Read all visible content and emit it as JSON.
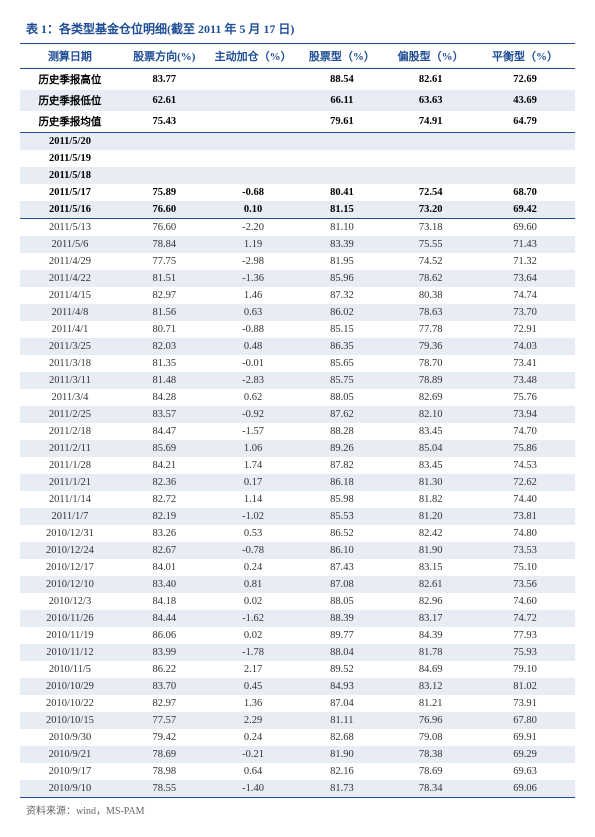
{
  "title": "表 1：各类型基金仓位明细(截至 2011 年 5 月 17 日)",
  "footer": "资料来源：wind，MS-PAM",
  "columns": [
    "测算日期",
    "股票方向(%)",
    "主动加仓（%）",
    "股票型（%）",
    "偏股型（%）",
    "平衡型（%）"
  ],
  "summary_rows": [
    {
      "label": "历史季报高位",
      "v": [
        "83.77",
        "",
        "88.54",
        "82.61",
        "72.69"
      ],
      "bold": true
    },
    {
      "label": "历史季报低位",
      "v": [
        "62.61",
        "",
        "66.11",
        "63.63",
        "43.69"
      ],
      "bold": true,
      "gray": true
    },
    {
      "label": "历史季报均值",
      "v": [
        "75.43",
        "",
        "79.61",
        "74.91",
        "64.79"
      ],
      "bold": true,
      "sep": true
    },
    {
      "label": "2011/5/20",
      "v": [
        "",
        "",
        "",
        "",
        ""
      ],
      "bold": true,
      "gray": true
    },
    {
      "label": "2011/5/19",
      "v": [
        "",
        "",
        "",
        "",
        ""
      ],
      "bold": true
    },
    {
      "label": "2011/5/18",
      "v": [
        "",
        "",
        "",
        "",
        ""
      ],
      "bold": true,
      "gray": true
    },
    {
      "label": "2011/5/17",
      "v": [
        "75.89",
        "-0.68",
        "80.41",
        "72.54",
        "68.70"
      ],
      "bold": true
    },
    {
      "label": "2011/5/16",
      "v": [
        "76.60",
        "0.10",
        "81.15",
        "73.20",
        "69.42"
      ],
      "bold": true,
      "gray": true,
      "sep": true
    }
  ],
  "data_rows": [
    {
      "d": "2011/5/13",
      "v": [
        "76.60",
        "-2.20",
        "81.10",
        "73.18",
        "69.60"
      ]
    },
    {
      "d": "2011/5/6",
      "v": [
        "78.84",
        "1.19",
        "83.39",
        "75.55",
        "71.43"
      ]
    },
    {
      "d": "2011/4/29",
      "v": [
        "77.75",
        "-2.98",
        "81.95",
        "74.52",
        "71.32"
      ]
    },
    {
      "d": "2011/4/22",
      "v": [
        "81.51",
        "-1.36",
        "85.96",
        "78.62",
        "73.64"
      ]
    },
    {
      "d": "2011/4/15",
      "v": [
        "82.97",
        "1.46",
        "87.32",
        "80.38",
        "74.74"
      ]
    },
    {
      "d": "2011/4/8",
      "v": [
        "81.56",
        "0.63",
        "86.02",
        "78.63",
        "73.70"
      ]
    },
    {
      "d": "2011/4/1",
      "v": [
        "80.71",
        "-0.88",
        "85.15",
        "77.78",
        "72.91"
      ]
    },
    {
      "d": "2011/3/25",
      "v": [
        "82.03",
        "0.48",
        "86.35",
        "79.36",
        "74.03"
      ]
    },
    {
      "d": "2011/3/18",
      "v": [
        "81.35",
        "-0.01",
        "85.65",
        "78.70",
        "73.41"
      ]
    },
    {
      "d": "2011/3/11",
      "v": [
        "81.48",
        "-2.83",
        "85.75",
        "78.89",
        "73.48"
      ]
    },
    {
      "d": "2011/3/4",
      "v": [
        "84.28",
        "0.62",
        "88.05",
        "82.69",
        "75.76"
      ]
    },
    {
      "d": "2011/2/25",
      "v": [
        "83.57",
        "-0.92",
        "87.62",
        "82.10",
        "73.94"
      ]
    },
    {
      "d": "2011/2/18",
      "v": [
        "84.47",
        "-1.57",
        "88.28",
        "83.45",
        "74.70"
      ]
    },
    {
      "d": "2011/2/11",
      "v": [
        "85.69",
        "1.06",
        "89.26",
        "85.04",
        "75.86"
      ]
    },
    {
      "d": "2011/1/28",
      "v": [
        "84.21",
        "1.74",
        "87.82",
        "83.45",
        "74.53"
      ]
    },
    {
      "d": "2011/1/21",
      "v": [
        "82.36",
        "0.17",
        "86.18",
        "81.30",
        "72.62"
      ]
    },
    {
      "d": "2011/1/14",
      "v": [
        "82.72",
        "1.14",
        "85.98",
        "81.82",
        "74.40"
      ]
    },
    {
      "d": "2011/1/7",
      "v": [
        "82.19",
        "-1.02",
        "85.53",
        "81.20",
        "73.81"
      ]
    },
    {
      "d": "2010/12/31",
      "v": [
        "83.26",
        "0.53",
        "86.52",
        "82.42",
        "74.80"
      ]
    },
    {
      "d": "2010/12/24",
      "v": [
        "82.67",
        "-0.78",
        "86.10",
        "81.90",
        "73.53"
      ]
    },
    {
      "d": "2010/12/17",
      "v": [
        "84.01",
        "0.24",
        "87.43",
        "83.15",
        "75.10"
      ]
    },
    {
      "d": "2010/12/10",
      "v": [
        "83.40",
        "0.81",
        "87.08",
        "82.61",
        "73.56"
      ]
    },
    {
      "d": "2010/12/3",
      "v": [
        "84.18",
        "0.02",
        "88.05",
        "82.96",
        "74.60"
      ]
    },
    {
      "d": "2010/11/26",
      "v": [
        "84.44",
        "-1.62",
        "88.39",
        "83.17",
        "74.72"
      ]
    },
    {
      "d": "2010/11/19",
      "v": [
        "86.06",
        "0.02",
        "89.77",
        "84.39",
        "77.93"
      ]
    },
    {
      "d": "2010/11/12",
      "v": [
        "83.99",
        "-1.78",
        "88.04",
        "81.78",
        "75.93"
      ]
    },
    {
      "d": "2010/11/5",
      "v": [
        "86.22",
        "2.17",
        "89.52",
        "84.69",
        "79.10"
      ]
    },
    {
      "d": "2010/10/29",
      "v": [
        "83.70",
        "0.45",
        "84.93",
        "83.12",
        "81.02"
      ]
    },
    {
      "d": "2010/10/22",
      "v": [
        "82.97",
        "1.36",
        "87.04",
        "81.21",
        "73.91"
      ]
    },
    {
      "d": "2010/10/15",
      "v": [
        "77.57",
        "2.29",
        "81.11",
        "76.96",
        "67.80"
      ]
    },
    {
      "d": "2010/9/30",
      "v": [
        "79.42",
        "0.24",
        "82.68",
        "79.08",
        "69.91"
      ]
    },
    {
      "d": "2010/9/21",
      "v": [
        "78.69",
        "-0.21",
        "81.90",
        "78.38",
        "69.29"
      ]
    },
    {
      "d": "2010/9/17",
      "v": [
        "78.98",
        "0.64",
        "82.16",
        "78.69",
        "69.63"
      ]
    },
    {
      "d": "2010/9/10",
      "v": [
        "78.55",
        "-1.40",
        "81.73",
        "78.34",
        "69.06"
      ]
    }
  ]
}
